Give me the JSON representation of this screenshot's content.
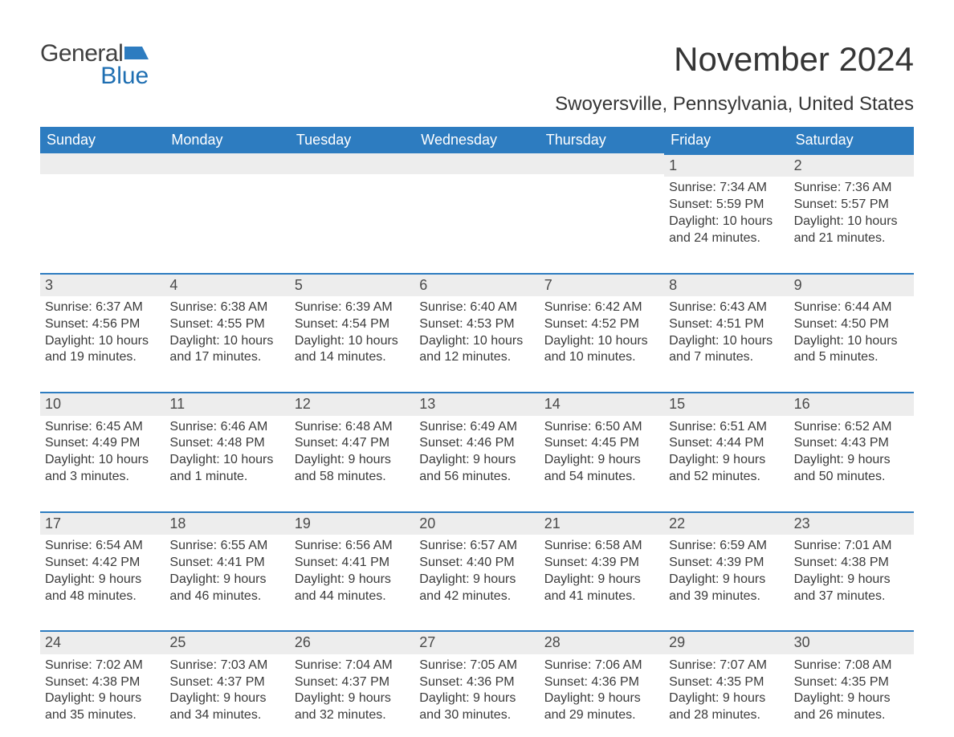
{
  "logo": {
    "text_general": "General",
    "text_blue": "Blue",
    "flag_color": "#2d7cc0"
  },
  "title": "November 2024",
  "location": "Swoyersville, Pennsylvania, United States",
  "colors": {
    "header_bg": "#2d7cc0",
    "header_text": "#ffffff",
    "day_bar_bg": "#ededed",
    "day_bar_border": "#2d7cc0",
    "body_text": "#3a3a3a",
    "page_bg": "#ffffff"
  },
  "typography": {
    "title_fontsize": 42,
    "location_fontsize": 24,
    "header_fontsize": 18,
    "cell_fontsize": 16,
    "daynum_fontsize": 18
  },
  "layout": {
    "columns": 7,
    "rows": 5,
    "first_day_column_index": 5
  },
  "weekdays": [
    "Sunday",
    "Monday",
    "Tuesday",
    "Wednesday",
    "Thursday",
    "Friday",
    "Saturday"
  ],
  "days": [
    {
      "n": 1,
      "sunrise": "7:34 AM",
      "sunset": "5:59 PM",
      "daylight": "10 hours and 24 minutes."
    },
    {
      "n": 2,
      "sunrise": "7:36 AM",
      "sunset": "5:57 PM",
      "daylight": "10 hours and 21 minutes."
    },
    {
      "n": 3,
      "sunrise": "6:37 AM",
      "sunset": "4:56 PM",
      "daylight": "10 hours and 19 minutes."
    },
    {
      "n": 4,
      "sunrise": "6:38 AM",
      "sunset": "4:55 PM",
      "daylight": "10 hours and 17 minutes."
    },
    {
      "n": 5,
      "sunrise": "6:39 AM",
      "sunset": "4:54 PM",
      "daylight": "10 hours and 14 minutes."
    },
    {
      "n": 6,
      "sunrise": "6:40 AM",
      "sunset": "4:53 PM",
      "daylight": "10 hours and 12 minutes."
    },
    {
      "n": 7,
      "sunrise": "6:42 AM",
      "sunset": "4:52 PM",
      "daylight": "10 hours and 10 minutes."
    },
    {
      "n": 8,
      "sunrise": "6:43 AM",
      "sunset": "4:51 PM",
      "daylight": "10 hours and 7 minutes."
    },
    {
      "n": 9,
      "sunrise": "6:44 AM",
      "sunset": "4:50 PM",
      "daylight": "10 hours and 5 minutes."
    },
    {
      "n": 10,
      "sunrise": "6:45 AM",
      "sunset": "4:49 PM",
      "daylight": "10 hours and 3 minutes."
    },
    {
      "n": 11,
      "sunrise": "6:46 AM",
      "sunset": "4:48 PM",
      "daylight": "10 hours and 1 minute."
    },
    {
      "n": 12,
      "sunrise": "6:48 AM",
      "sunset": "4:47 PM",
      "daylight": "9 hours and 58 minutes."
    },
    {
      "n": 13,
      "sunrise": "6:49 AM",
      "sunset": "4:46 PM",
      "daylight": "9 hours and 56 minutes."
    },
    {
      "n": 14,
      "sunrise": "6:50 AM",
      "sunset": "4:45 PM",
      "daylight": "9 hours and 54 minutes."
    },
    {
      "n": 15,
      "sunrise": "6:51 AM",
      "sunset": "4:44 PM",
      "daylight": "9 hours and 52 minutes."
    },
    {
      "n": 16,
      "sunrise": "6:52 AM",
      "sunset": "4:43 PM",
      "daylight": "9 hours and 50 minutes."
    },
    {
      "n": 17,
      "sunrise": "6:54 AM",
      "sunset": "4:42 PM",
      "daylight": "9 hours and 48 minutes."
    },
    {
      "n": 18,
      "sunrise": "6:55 AM",
      "sunset": "4:41 PM",
      "daylight": "9 hours and 46 minutes."
    },
    {
      "n": 19,
      "sunrise": "6:56 AM",
      "sunset": "4:41 PM",
      "daylight": "9 hours and 44 minutes."
    },
    {
      "n": 20,
      "sunrise": "6:57 AM",
      "sunset": "4:40 PM",
      "daylight": "9 hours and 42 minutes."
    },
    {
      "n": 21,
      "sunrise": "6:58 AM",
      "sunset": "4:39 PM",
      "daylight": "9 hours and 41 minutes."
    },
    {
      "n": 22,
      "sunrise": "6:59 AM",
      "sunset": "4:39 PM",
      "daylight": "9 hours and 39 minutes."
    },
    {
      "n": 23,
      "sunrise": "7:01 AM",
      "sunset": "4:38 PM",
      "daylight": "9 hours and 37 minutes."
    },
    {
      "n": 24,
      "sunrise": "7:02 AM",
      "sunset": "4:38 PM",
      "daylight": "9 hours and 35 minutes."
    },
    {
      "n": 25,
      "sunrise": "7:03 AM",
      "sunset": "4:37 PM",
      "daylight": "9 hours and 34 minutes."
    },
    {
      "n": 26,
      "sunrise": "7:04 AM",
      "sunset": "4:37 PM",
      "daylight": "9 hours and 32 minutes."
    },
    {
      "n": 27,
      "sunrise": "7:05 AM",
      "sunset": "4:36 PM",
      "daylight": "9 hours and 30 minutes."
    },
    {
      "n": 28,
      "sunrise": "7:06 AM",
      "sunset": "4:36 PM",
      "daylight": "9 hours and 29 minutes."
    },
    {
      "n": 29,
      "sunrise": "7:07 AM",
      "sunset": "4:35 PM",
      "daylight": "9 hours and 28 minutes."
    },
    {
      "n": 30,
      "sunrise": "7:08 AM",
      "sunset": "4:35 PM",
      "daylight": "9 hours and 26 minutes."
    }
  ],
  "labels": {
    "sunrise": "Sunrise: ",
    "sunset": "Sunset: ",
    "daylight": "Daylight: "
  }
}
